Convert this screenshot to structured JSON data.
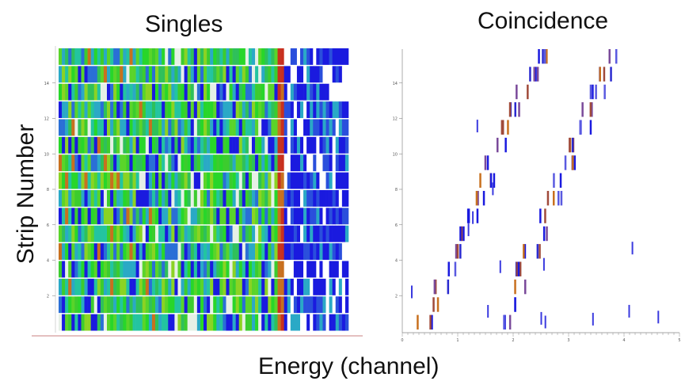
{
  "chart_data": [
    {
      "type": "heatmap",
      "title": "Singles",
      "ylabel": "Strip Number",
      "xlabel": "Energy (channel)",
      "strips": 16,
      "bins": 90,
      "ylim": [
        0,
        16
      ],
      "yticks": [
        2,
        4,
        6,
        8,
        10,
        12,
        14
      ],
      "colorscale": [
        "#ffffff",
        "#1a1adf",
        "#2aa9c6",
        "#28d62a",
        "#8bd323",
        "#c8701e",
        "#c81e1e"
      ],
      "hot_edge_fraction": 0.77
    },
    {
      "type": "scatter",
      "title": "Coincidence",
      "xlabel": "Energy (channel)",
      "ylim": [
        0,
        16
      ],
      "yticks": [
        2,
        4,
        6,
        8,
        10,
        12,
        14
      ],
      "xticks": [
        0,
        1,
        2,
        3,
        4,
        5
      ],
      "series": [
        {
          "line": "first",
          "x0": 0.08,
          "slope": 0.065
        },
        {
          "line": "second",
          "x0": 0.36,
          "slope": 0.062
        }
      ]
    }
  ]
}
